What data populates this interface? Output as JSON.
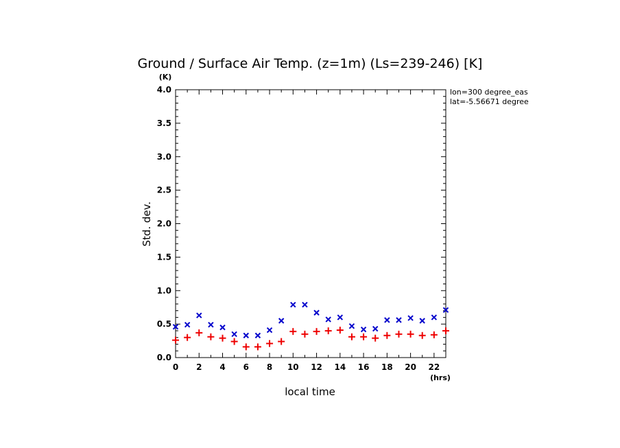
{
  "chart_data": {
    "type": "scatter",
    "title": "Ground / Surface Air Temp. (z=1m) (Ls=239-246) [K]",
    "xlabel": "local time",
    "ylabel": "Std. dev.",
    "x_unit": "(hrs)",
    "y_unit": "(K)",
    "xlim": [
      0,
      23
    ],
    "ylim": [
      0.0,
      4.0
    ],
    "x_ticks": [
      0,
      2,
      4,
      6,
      8,
      10,
      12,
      14,
      16,
      18,
      20,
      22
    ],
    "y_ticks": [
      "0.0",
      "0.5",
      "1.0",
      "1.5",
      "2.0",
      "2.5",
      "3.0",
      "3.5",
      "4.0"
    ],
    "annotations": [
      "lon=300 degree_eas",
      "lat=-5.56671 degree"
    ],
    "grid": false,
    "x": [
      0,
      1,
      2,
      3,
      4,
      5,
      6,
      7,
      8,
      9,
      10,
      11,
      12,
      13,
      14,
      15,
      16,
      17,
      18,
      19,
      20,
      21,
      22,
      23
    ],
    "series": [
      {
        "marker": "x",
        "color": "#0000cc",
        "values": [
          0.46,
          0.49,
          0.63,
          0.49,
          0.45,
          0.35,
          0.33,
          0.33,
          0.41,
          0.55,
          0.79,
          0.79,
          0.67,
          0.57,
          0.6,
          0.47,
          0.42,
          0.43,
          0.56,
          0.56,
          0.59,
          0.55,
          0.6,
          0.71
        ]
      },
      {
        "marker": "+",
        "color": "#ee0000",
        "values": [
          0.26,
          0.3,
          0.37,
          0.31,
          0.29,
          0.24,
          0.16,
          0.16,
          0.21,
          0.24,
          0.39,
          0.35,
          0.39,
          0.4,
          0.41,
          0.31,
          0.31,
          0.29,
          0.33,
          0.35,
          0.35,
          0.33,
          0.34,
          0.4
        ]
      }
    ]
  }
}
